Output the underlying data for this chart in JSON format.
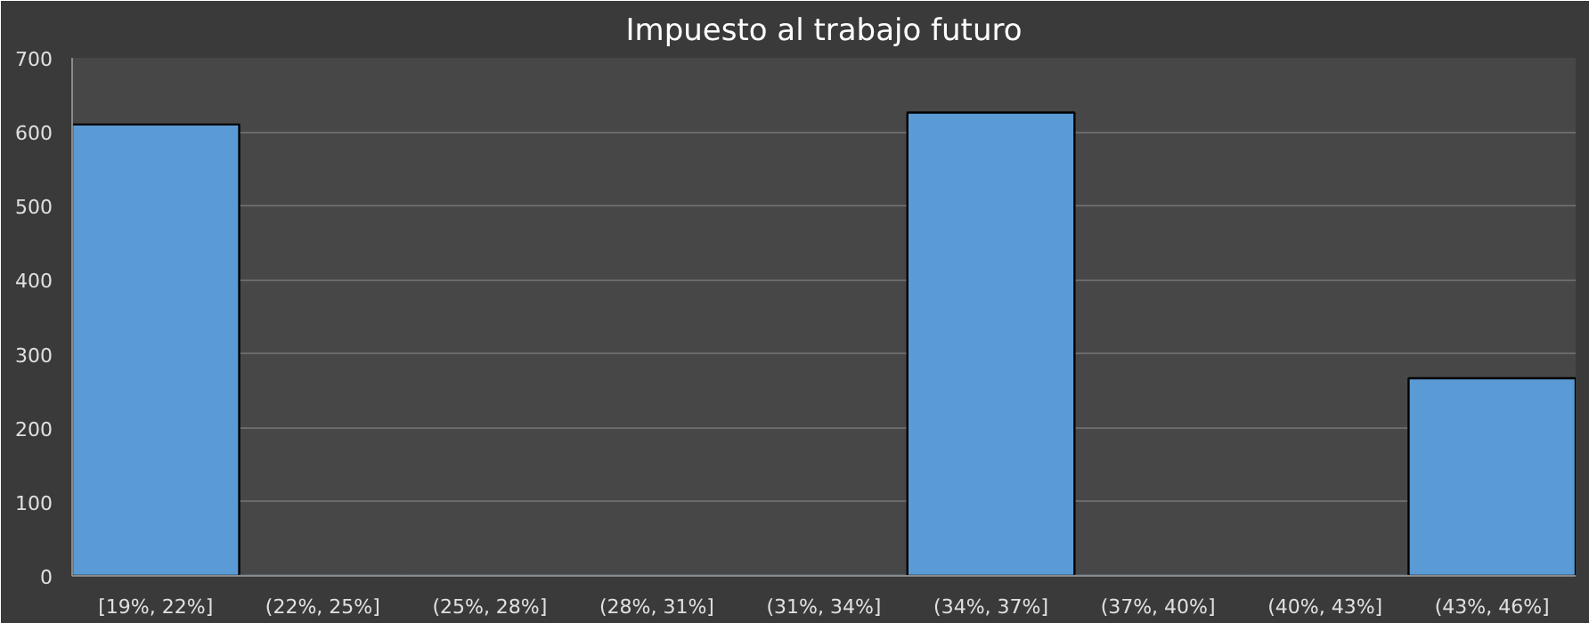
{
  "chart_data": {
    "type": "bar",
    "title": "Impuesto al trabajo futuro",
    "categories": [
      "[19%, 22%]",
      "(22%, 25%]",
      "(25%, 28%]",
      "(28%, 31%]",
      "(31%, 34%]",
      "(34%, 37%]",
      "(37%, 40%]",
      "(40%, 43%]",
      "(43%, 46%]"
    ],
    "values": [
      610,
      0,
      0,
      0,
      0,
      626,
      0,
      0,
      267
    ],
    "color": "#5b9bd5",
    "ylim": [
      0,
      700
    ],
    "yticks": [
      0,
      100,
      200,
      300,
      400,
      500,
      600,
      700
    ],
    "grid": "y"
  }
}
